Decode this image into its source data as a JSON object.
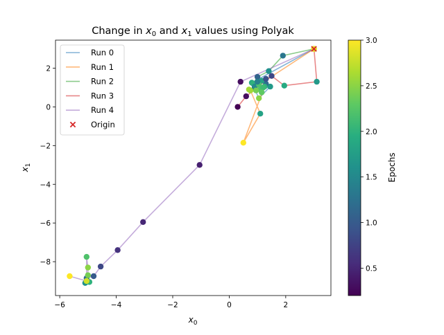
{
  "chart_data": {
    "type": "scatter",
    "title_prefix": "Change in ",
    "title_x0": "x",
    "title_sub0": "0",
    "title_mid": " and ",
    "title_x1": "x",
    "title_sub1": "1",
    "title_suffix": " values using Polyak",
    "xlabel_base": "x",
    "xlabel_sub": "0",
    "ylabel_base": "x",
    "ylabel_sub": "1",
    "xlim": [
      -6.15,
      3.6
    ],
    "ylim": [
      -9.75,
      3.45
    ],
    "x_ticks": [
      -6,
      -4,
      -2,
      0,
      2
    ],
    "x_tick_labels": [
      "−6",
      "−4",
      "−2",
      "0",
      "2"
    ],
    "y_ticks": [
      -8,
      -6,
      -4,
      -2,
      0,
      2
    ],
    "y_tick_labels": [
      "−8",
      "−6",
      "−4",
      "−2",
      "0",
      "2"
    ],
    "grid": false,
    "legend_position": "top-left",
    "colorbar": {
      "label": "Epochs",
      "range": [
        0.2,
        3.0
      ],
      "ticks": [
        0.5,
        1.0,
        1.5,
        2.0,
        2.5,
        3.0
      ],
      "tick_labels": [
        "0.5",
        "1.0",
        "1.5",
        "2.0",
        "2.5",
        "3.0"
      ],
      "colormap": "viridis"
    },
    "origin": {
      "name": "Origin",
      "x": 3.0,
      "y": 3.0,
      "color": "#d62728"
    },
    "series": [
      {
        "name": "Run 0",
        "color": "#1f77b4",
        "points": [
          {
            "x": 3.0,
            "y": 3.0,
            "e": 2.9
          },
          {
            "x": 0.8,
            "y": 1.25,
            "e": 1.9
          },
          {
            "x": 1.05,
            "y": 0.45,
            "e": 2.5
          },
          {
            "x": 1.45,
            "y": 1.05,
            "e": 1.7
          },
          {
            "x": 1.1,
            "y": 0.9,
            "e": 2.2
          },
          {
            "x": 1.3,
            "y": 1.2,
            "e": 1.2
          }
        ]
      },
      {
        "name": "Run 1",
        "color": "#ff7f0e",
        "points": [
          {
            "x": 3.0,
            "y": 3.0,
            "e": 2.9
          },
          {
            "x": 0.9,
            "y": 1.0,
            "e": 0.6
          },
          {
            "x": 0.75,
            "y": 0.85,
            "e": 2.6
          },
          {
            "x": 1.1,
            "y": -0.35,
            "e": 1.8
          },
          {
            "x": 0.5,
            "y": -1.85,
            "e": 3.0
          },
          {
            "x": 1.25,
            "y": 1.05,
            "e": 2.0
          }
        ]
      },
      {
        "name": "Run 2",
        "color": "#2ca02c",
        "points": [
          {
            "x": 3.0,
            "y": 3.0,
            "e": 2.9
          },
          {
            "x": 1.9,
            "y": 2.65,
            "e": 1.3
          },
          {
            "x": 1.4,
            "y": 1.85,
            "e": 1.6
          },
          {
            "x": 1.0,
            "y": 1.55,
            "e": 1.1
          },
          {
            "x": 0.85,
            "y": 1.2,
            "e": 2.0
          },
          {
            "x": 1.15,
            "y": 1.35,
            "e": 1.8
          }
        ]
      },
      {
        "name": "Run 3",
        "color": "#d62728",
        "points": [
          {
            "x": 3.0,
            "y": 3.0,
            "e": 2.9
          },
          {
            "x": 3.1,
            "y": 1.3,
            "e": 1.7
          },
          {
            "x": 1.95,
            "y": 1.1,
            "e": 1.9
          },
          {
            "x": 1.5,
            "y": 1.6,
            "e": 0.8
          },
          {
            "x": 0.6,
            "y": 0.55,
            "e": 0.3
          },
          {
            "x": 0.3,
            "y": 0.0,
            "e": 0.2
          }
        ]
      },
      {
        "name": "Run 4",
        "color": "#9467bd",
        "points": [
          {
            "x": 3.0,
            "y": 3.0,
            "e": 2.9
          },
          {
            "x": 0.4,
            "y": 1.3,
            "e": 0.3
          },
          {
            "x": -1.05,
            "y": -3.0,
            "e": 0.45
          },
          {
            "x": -3.05,
            "y": -5.95,
            "e": 0.5
          },
          {
            "x": -3.95,
            "y": -7.4,
            "e": 0.6
          },
          {
            "x": -4.55,
            "y": -8.25,
            "e": 0.8
          },
          {
            "x": -4.8,
            "y": -8.75,
            "e": 1.0
          },
          {
            "x": -5.05,
            "y": -8.85,
            "e": 1.2
          },
          {
            "x": -5.1,
            "y": -9.1,
            "e": 1.6
          },
          {
            "x": -4.95,
            "y": -9.05,
            "e": 2.0
          },
          {
            "x": -5.0,
            "y": -8.7,
            "e": 2.4
          },
          {
            "x": -5.0,
            "y": -8.3,
            "e": 2.5
          },
          {
            "x": -5.05,
            "y": -7.75,
            "e": 2.2
          },
          {
            "x": -5.05,
            "y": -9.0,
            "e": 2.8
          },
          {
            "x": -5.65,
            "y": -8.75,
            "e": 3.0
          }
        ]
      }
    ],
    "extra_points": [
      {
        "x": 0.7,
        "y": 0.9,
        "e": 2.6
      },
      {
        "x": 0.9,
        "y": 1.05,
        "e": 1.5
      },
      {
        "x": 1.05,
        "y": 1.15,
        "e": 2.2
      },
      {
        "x": 1.2,
        "y": 1.0,
        "e": 2.1
      },
      {
        "x": 0.95,
        "y": 0.85,
        "e": 2.4
      },
      {
        "x": 1.0,
        "y": 1.3,
        "e": 1.4
      },
      {
        "x": 1.3,
        "y": 1.45,
        "e": 0.9
      },
      {
        "x": 1.15,
        "y": 0.75,
        "e": 2.3
      }
    ]
  }
}
